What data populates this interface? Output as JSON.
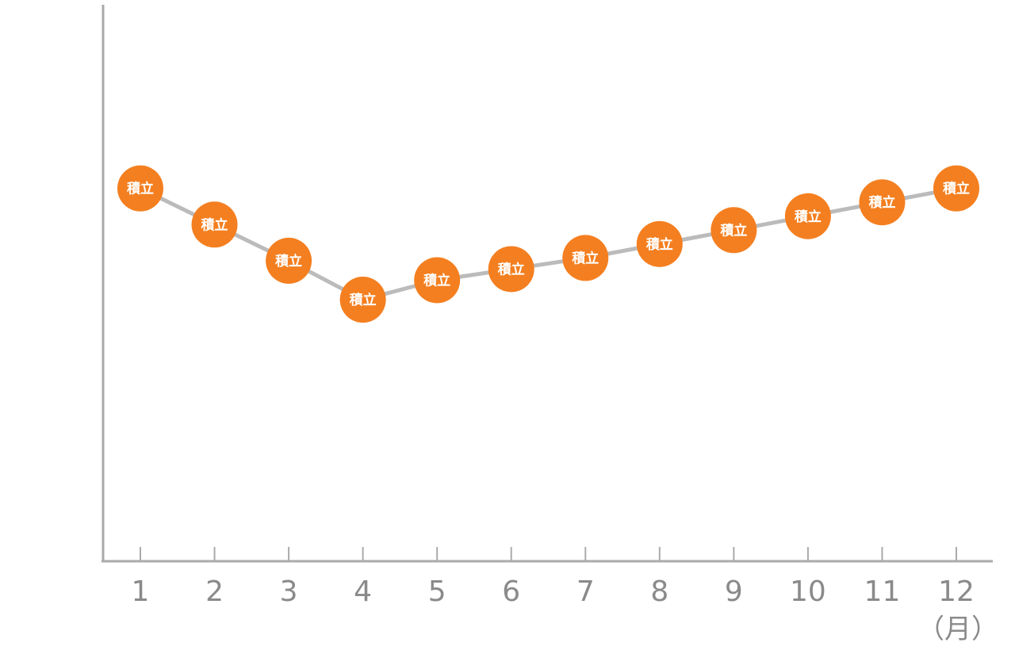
{
  "chart_data": {
    "type": "line",
    "x": [
      1,
      2,
      3,
      4,
      5,
      6,
      7,
      8,
      9,
      10,
      11,
      12
    ],
    "categories": [
      "1",
      "2",
      "3",
      "4",
      "5",
      "6",
      "7",
      "8",
      "9",
      "10",
      "11",
      "12"
    ],
    "values": [
      67,
      60.5,
      54,
      47,
      50.5,
      52.5,
      54.5,
      57,
      59.5,
      62,
      64.5,
      67
    ],
    "point_label": "積立",
    "x_unit": "（月）",
    "ylim": [
      0,
      100
    ],
    "y_ticks_shown": false,
    "grid": false,
    "legend": "none",
    "colors": {
      "line": "#bbbbbb",
      "marker": "#f47f20",
      "axis": "#aaaaaa",
      "tick_label": "#8a8a8a",
      "marker_text": "#ffffff"
    }
  }
}
